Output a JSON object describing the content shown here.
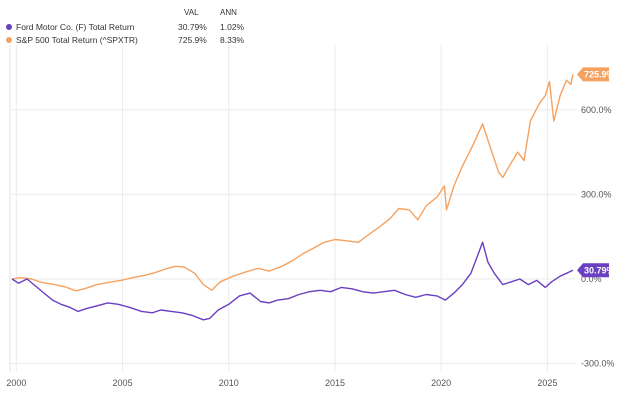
{
  "legend": {
    "col_val": "VAL",
    "col_ann": "ANN",
    "rows": [
      {
        "name": "Ford Motor Co. (F) Total Return",
        "val": "30.79%",
        "ann": "1.02%",
        "color": "#6a3fc2"
      },
      {
        "name": "S&P 500 Total Return (^SPXTR)",
        "val": "725.9%",
        "ann": "8.33%",
        "color": "#f5a261"
      }
    ]
  },
  "chart_data": {
    "type": "line",
    "xlabel": "",
    "ylabel": "",
    "x_ticks": [
      "2000",
      "2005",
      "2010",
      "2015",
      "2020",
      "2025"
    ],
    "y_ticks": [
      "600.0%",
      "300.0%",
      "0.0%",
      "-300.0%"
    ],
    "xlim": [
      1999.7,
      2026.3
    ],
    "ylim": [
      -330,
      830
    ],
    "grid": true,
    "legend_position": "top-left",
    "series": [
      {
        "name": "S&P 500 Total Return (^SPXTR)",
        "color": "#f5a261",
        "end_label": "725.9%",
        "points": [
          [
            1999.8,
            0
          ],
          [
            2000.2,
            5
          ],
          [
            2000.7,
            0
          ],
          [
            2001.2,
            -12
          ],
          [
            2001.8,
            -20
          ],
          [
            2002.3,
            -28
          ],
          [
            2002.8,
            -42
          ],
          [
            2003.2,
            -35
          ],
          [
            2003.8,
            -20
          ],
          [
            2004.5,
            -10
          ],
          [
            2005.0,
            -4
          ],
          [
            2005.5,
            5
          ],
          [
            2006.0,
            12
          ],
          [
            2006.5,
            22
          ],
          [
            2007.0,
            35
          ],
          [
            2007.5,
            45
          ],
          [
            2007.9,
            42
          ],
          [
            2008.4,
            20
          ],
          [
            2008.8,
            -20
          ],
          [
            2009.2,
            -40
          ],
          [
            2009.6,
            -10
          ],
          [
            2010.2,
            10
          ],
          [
            2010.8,
            25
          ],
          [
            2011.4,
            38
          ],
          [
            2011.9,
            28
          ],
          [
            2012.5,
            45
          ],
          [
            2013.0,
            65
          ],
          [
            2013.5,
            90
          ],
          [
            2014.0,
            110
          ],
          [
            2014.5,
            130
          ],
          [
            2015.0,
            140
          ],
          [
            2015.6,
            135
          ],
          [
            2016.1,
            130
          ],
          [
            2016.6,
            158
          ],
          [
            2017.1,
            185
          ],
          [
            2017.6,
            215
          ],
          [
            2018.0,
            250
          ],
          [
            2018.5,
            245
          ],
          [
            2018.9,
            210
          ],
          [
            2019.3,
            260
          ],
          [
            2019.8,
            290
          ],
          [
            2020.15,
            330
          ],
          [
            2020.25,
            245
          ],
          [
            2020.6,
            330
          ],
          [
            2021.0,
            400
          ],
          [
            2021.5,
            475
          ],
          [
            2021.95,
            550
          ],
          [
            2022.3,
            470
          ],
          [
            2022.7,
            380
          ],
          [
            2022.9,
            360
          ],
          [
            2023.2,
            400
          ],
          [
            2023.6,
            450
          ],
          [
            2023.9,
            420
          ],
          [
            2024.2,
            560
          ],
          [
            2024.6,
            620
          ],
          [
            2024.9,
            650
          ],
          [
            2025.1,
            700
          ],
          [
            2025.3,
            560
          ],
          [
            2025.6,
            650
          ],
          [
            2025.9,
            705
          ],
          [
            2026.1,
            690
          ],
          [
            2026.2,
            725.9
          ]
        ]
      },
      {
        "name": "Ford Motor Co. (F) Total Return",
        "color": "#6a3fc2",
        "end_label": "30.79%",
        "points": [
          [
            1999.8,
            0
          ],
          [
            2000.1,
            -15
          ],
          [
            2000.5,
            0
          ],
          [
            2000.9,
            -25
          ],
          [
            2001.3,
            -50
          ],
          [
            2001.7,
            -75
          ],
          [
            2002.1,
            -90
          ],
          [
            2002.5,
            -100
          ],
          [
            2002.9,
            -115
          ],
          [
            2003.3,
            -105
          ],
          [
            2003.8,
            -95
          ],
          [
            2004.3,
            -85
          ],
          [
            2004.8,
            -90
          ],
          [
            2005.3,
            -100
          ],
          [
            2005.9,
            -115
          ],
          [
            2006.4,
            -120
          ],
          [
            2006.8,
            -110
          ],
          [
            2007.3,
            -115
          ],
          [
            2007.8,
            -120
          ],
          [
            2008.3,
            -130
          ],
          [
            2008.8,
            -145
          ],
          [
            2009.1,
            -140
          ],
          [
            2009.5,
            -110
          ],
          [
            2010.0,
            -90
          ],
          [
            2010.5,
            -60
          ],
          [
            2011.0,
            -50
          ],
          [
            2011.5,
            -80
          ],
          [
            2011.9,
            -85
          ],
          [
            2012.3,
            -75
          ],
          [
            2012.8,
            -70
          ],
          [
            2013.3,
            -55
          ],
          [
            2013.8,
            -45
          ],
          [
            2014.3,
            -40
          ],
          [
            2014.8,
            -45
          ],
          [
            2015.3,
            -30
          ],
          [
            2015.8,
            -35
          ],
          [
            2016.3,
            -45
          ],
          [
            2016.8,
            -50
          ],
          [
            2017.3,
            -45
          ],
          [
            2017.8,
            -40
          ],
          [
            2018.3,
            -55
          ],
          [
            2018.8,
            -65
          ],
          [
            2019.3,
            -55
          ],
          [
            2019.8,
            -60
          ],
          [
            2020.2,
            -75
          ],
          [
            2020.6,
            -50
          ],
          [
            2021.0,
            -20
          ],
          [
            2021.4,
            20
          ],
          [
            2021.7,
            80
          ],
          [
            2021.95,
            130
          ],
          [
            2022.2,
            60
          ],
          [
            2022.5,
            20
          ],
          [
            2022.9,
            -20
          ],
          [
            2023.3,
            -10
          ],
          [
            2023.7,
            0
          ],
          [
            2024.1,
            -20
          ],
          [
            2024.5,
            -5
          ],
          [
            2024.9,
            -30
          ],
          [
            2025.2,
            -10
          ],
          [
            2025.6,
            10
          ],
          [
            2025.9,
            20
          ],
          [
            2026.2,
            30.79
          ]
        ]
      }
    ]
  }
}
